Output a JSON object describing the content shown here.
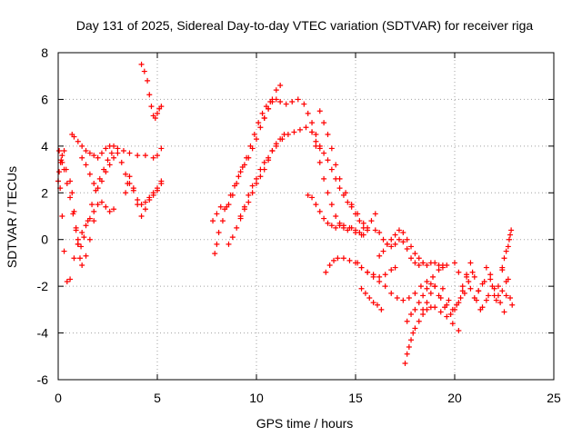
{
  "chart_data": {
    "type": "scatter",
    "title": "Day 131 of 2025, Sidereal Day-to-day VTEC variation (SDTVAR) for receiver riga",
    "xlabel": "GPS time / hours",
    "ylabel": "SDTVAR / TECUs",
    "xlim": [
      0,
      25
    ],
    "ylim": [
      -6,
      8
    ],
    "x_ticks": [
      "0",
      "5",
      "10",
      "15",
      "20",
      "25"
    ],
    "y_ticks": [
      "-6",
      "-4",
      "-2",
      "0",
      "2",
      "4",
      "6",
      "8"
    ],
    "grid": true,
    "marker": "+",
    "color": "#ff0000",
    "series": [
      {
        "name": "s1",
        "x": [
          0.0,
          0.1,
          0.2,
          0.3,
          0.45,
          0.6,
          0.8,
          1.0,
          1.2,
          1.4,
          1.6,
          1.8,
          2.0,
          2.2,
          2.4,
          2.6,
          2.8
        ],
        "y": [
          2.5,
          2.2,
          1.0,
          -0.5,
          -1.8,
          -1.7,
          -0.8,
          -0.2,
          0.3,
          0.6,
          0.9,
          1.2,
          1.5,
          1.6,
          1.4,
          1.2,
          1.3
        ]
      },
      {
        "name": "s2",
        "x": [
          0.05,
          0.15,
          0.3,
          0.45,
          0.6,
          0.75,
          0.9,
          1.0,
          1.1,
          1.2,
          1.4,
          1.6,
          1.8
        ],
        "y": [
          3.8,
          3.4,
          3.0,
          2.4,
          1.8,
          1.1,
          0.4,
          -0.2,
          -0.8,
          -1.1,
          -0.7,
          0.0,
          0.8
        ]
      },
      {
        "name": "s3",
        "x": [
          0.2,
          0.4,
          0.6,
          0.7,
          0.8,
          0.9,
          1.0,
          1.15,
          1.3,
          1.5,
          1.7,
          1.9,
          2.1,
          2.3,
          2.5,
          2.7
        ],
        "y": [
          3.3,
          3.0,
          2.5,
          2.0,
          1.2,
          0.5,
          0.0,
          -0.3,
          0.1,
          0.8,
          1.5,
          2.1,
          2.6,
          3.0,
          3.4,
          3.7
        ]
      },
      {
        "name": "s4",
        "x": [
          0.0,
          0.05,
          0.12,
          0.2,
          0.3
        ],
        "y": [
          2.5,
          2.9,
          3.3,
          3.6,
          3.8
        ]
      },
      {
        "name": "s5",
        "x": [
          0.7,
          0.8,
          1.0,
          1.2,
          1.4,
          1.6,
          1.8,
          2.0,
          2.2,
          2.4,
          2.6,
          2.8,
          3.0,
          3.3,
          3.6,
          4.0,
          4.4,
          4.8,
          5.0,
          5.2
        ],
        "y": [
          4.5,
          4.4,
          4.2,
          4.0,
          3.8,
          3.7,
          3.6,
          3.5,
          3.7,
          3.9,
          4.0,
          4.0,
          3.9,
          3.8,
          3.7,
          3.6,
          3.6,
          3.5,
          3.6,
          3.9
        ]
      },
      {
        "name": "s6",
        "x": [
          1.2,
          1.4,
          1.6,
          1.8,
          2.0,
          2.2,
          2.4,
          2.6,
          2.8,
          3.0,
          3.2,
          3.4,
          3.6,
          3.8,
          4.0,
          4.2,
          4.4,
          4.6,
          4.8,
          5.0,
          5.2
        ],
        "y": [
          3.5,
          3.2,
          2.8,
          2.4,
          2.2,
          2.5,
          2.9,
          3.2,
          3.5,
          3.7,
          3.3,
          2.8,
          2.4,
          2.1,
          1.7,
          1.5,
          1.6,
          1.8,
          2.0,
          2.2,
          2.5
        ]
      },
      {
        "name": "s7",
        "x": [
          3.4,
          3.5,
          3.6,
          3.8,
          4.0,
          4.2,
          4.4,
          4.6,
          4.8,
          5.0,
          5.2
        ],
        "y": [
          2.0,
          2.4,
          2.7,
          2.2,
          1.5,
          1.0,
          1.3,
          1.7,
          1.9,
          2.1,
          2.4
        ]
      },
      {
        "name": "s8",
        "x": [
          4.2,
          4.35,
          4.5,
          4.6,
          4.7,
          4.8,
          4.9,
          5.0,
          5.1,
          5.2
        ],
        "y": [
          7.5,
          7.2,
          6.8,
          6.2,
          5.7,
          5.3,
          5.2,
          5.4,
          5.6,
          5.7
        ]
      },
      {
        "name": "s9",
        "x": [
          7.9,
          8.0,
          8.1,
          8.3,
          8.5,
          8.7,
          8.9,
          9.1,
          9.3,
          9.5,
          9.7,
          9.9,
          10.1,
          10.3,
          10.5,
          10.7
        ],
        "y": [
          -0.6,
          -0.2,
          0.3,
          0.8,
          1.4,
          1.9,
          2.3,
          2.7,
          3.1,
          3.5,
          4.0,
          4.5,
          5.0,
          5.4,
          5.7,
          5.9
        ]
      },
      {
        "name": "s10",
        "x": [
          7.8,
          8.0,
          8.2,
          8.4,
          8.6,
          8.8,
          9.0,
          9.2,
          9.4,
          9.6,
          9.8,
          10.0,
          10.2,
          10.4,
          10.6,
          10.8,
          11.0,
          11.2
        ],
        "y": [
          0.8,
          1.1,
          1.4,
          1.3,
          1.5,
          1.9,
          2.4,
          2.9,
          3.2,
          3.5,
          3.9,
          4.3,
          4.8,
          5.2,
          5.6,
          6.0,
          6.4,
          6.6
        ]
      },
      {
        "name": "s11",
        "x": [
          8.6,
          8.8,
          9.0,
          9.2,
          9.4,
          9.6,
          9.8,
          10.0,
          10.2,
          10.4,
          10.6,
          10.8,
          11.0,
          11.2,
          11.4
        ],
        "y": [
          -0.2,
          0.1,
          0.5,
          0.9,
          1.4,
          1.9,
          2.3,
          2.6,
          3.0,
          3.3,
          3.5,
          3.8,
          4.0,
          4.3,
          4.5
        ]
      },
      {
        "name": "s12",
        "x": [
          9.2,
          9.4,
          9.6,
          9.8,
          10.0,
          10.2,
          10.4,
          10.6,
          10.8,
          11.0,
          11.3,
          11.6,
          11.9,
          12.2,
          12.5,
          12.8,
          13.0,
          13.2
        ],
        "y": [
          1.0,
          1.3,
          1.6,
          2.0,
          2.4,
          2.7,
          3.0,
          3.4,
          3.8,
          4.1,
          4.3,
          4.5,
          4.6,
          4.7,
          4.8,
          4.6,
          4.2,
          3.9
        ]
      },
      {
        "name": "s13",
        "x": [
          10.4,
          10.6,
          10.8,
          11.0,
          11.2,
          11.5,
          11.8,
          12.1,
          12.4,
          12.6,
          12.8,
          13.0,
          13.2,
          13.4,
          13.6,
          13.8,
          14.0,
          14.2,
          14.4,
          14.6,
          14.8,
          15.0,
          15.2,
          15.4,
          15.6,
          15.8,
          16.0
        ],
        "y": [
          5.2,
          5.6,
          5.9,
          6.0,
          5.9,
          5.8,
          5.9,
          6.0,
          5.8,
          5.4,
          5.0,
          4.5,
          4.0,
          3.7,
          3.4,
          3.0,
          2.6,
          2.2,
          1.9,
          1.6,
          1.4,
          1.1,
          0.8,
          0.5,
          0.4,
          0.8,
          1.1
        ]
      },
      {
        "name": "s14",
        "x": [
          12.8,
          13.0,
          13.2,
          13.4,
          13.6,
          13.8,
          14.0,
          14.2,
          14.4,
          14.6,
          14.8,
          15.0,
          15.2,
          15.4
        ],
        "y": [
          4.6,
          4.0,
          3.3,
          2.6,
          2.0,
          1.5,
          1.0,
          0.7,
          0.5,
          0.4,
          0.5,
          0.4,
          0.3,
          0.2
        ]
      },
      {
        "name": "s15",
        "x": [
          13.2,
          13.4,
          13.6,
          13.8,
          14.0,
          14.2,
          14.5,
          14.8,
          15.1,
          15.4,
          15.6
        ],
        "y": [
          5.5,
          5.0,
          4.5,
          3.9,
          3.2,
          2.6,
          2.0,
          1.5,
          1.1,
          0.7,
          0.5
        ]
      },
      {
        "name": "s16",
        "x": [
          12.6,
          12.8,
          13.0,
          13.2,
          13.4,
          13.6,
          13.8,
          14.0,
          14.2,
          14.4,
          14.7,
          15.0,
          15.3
        ],
        "y": [
          1.9,
          1.8,
          1.5,
          1.2,
          0.9,
          0.7,
          0.6,
          0.5,
          0.6,
          0.6,
          0.5,
          0.3,
          0.2
        ]
      },
      {
        "name": "s17",
        "x": [
          13.5,
          13.7,
          13.9,
          14.1,
          14.4,
          14.7,
          15.0,
          15.3,
          15.6,
          15.9,
          16.2,
          16.5,
          16.8,
          17.0
        ],
        "y": [
          -1.4,
          -1.1,
          -0.9,
          -0.8,
          -0.8,
          -0.9,
          -1.0,
          -1.2,
          -1.4,
          -1.5,
          -1.6,
          -1.5,
          -1.3,
          -1.2
        ]
      },
      {
        "name": "s18",
        "x": [
          15.1,
          15.3,
          15.6,
          15.9,
          16.2,
          16.5,
          16.8,
          17.1,
          17.4,
          17.7,
          18.0,
          18.3,
          18.6,
          18.9,
          19.2,
          19.4
        ],
        "y": [
          -1.0,
          -1.2,
          -1.4,
          -1.6,
          -1.8,
          -2.0,
          -2.3,
          -2.5,
          -2.6,
          -2.5,
          -2.3,
          -2.0,
          -1.8,
          -1.6,
          -1.3,
          -1.1
        ]
      },
      {
        "name": "s19",
        "x": [
          15.3,
          15.5,
          15.7,
          15.9,
          16.1,
          16.3
        ],
        "y": [
          -2.1,
          -2.3,
          -2.5,
          -2.7,
          -2.8,
          -3.0
        ]
      },
      {
        "name": "s20",
        "x": [
          16.2,
          16.4,
          16.6,
          16.8,
          17.0,
          17.2,
          17.4,
          17.6,
          17.8,
          18.0,
          18.2,
          18.4,
          18.6,
          18.8,
          19.0,
          19.2,
          19.4,
          19.6
        ],
        "y": [
          -0.7,
          -0.5,
          -0.2,
          0.0,
          0.2,
          0.4,
          0.3,
          0.0,
          -0.3,
          -0.6,
          -0.8,
          -1.0,
          -1.1,
          -1.0,
          -1.0,
          -1.1,
          -1.2,
          -1.1
        ]
      },
      {
        "name": "s21",
        "x": [
          16.0,
          16.2,
          16.4,
          16.6,
          16.8,
          17.0,
          17.2,
          17.4,
          17.6,
          17.8,
          18.0,
          18.2,
          18.4
        ],
        "y": [
          0.4,
          0.3,
          0.0,
          -0.2,
          -0.3,
          -0.2,
          0.0,
          -0.1,
          -0.4,
          -0.8,
          -1.0,
          -1.1,
          -1.0
        ]
      },
      {
        "name": "s22",
        "x": [
          17.5,
          17.6,
          17.7,
          17.8,
          17.9,
          18.0,
          18.2,
          18.4,
          18.6,
          18.8,
          19.0,
          19.3,
          19.6,
          19.9,
          20.2
        ],
        "y": [
          -5.3,
          -4.9,
          -4.6,
          -4.3,
          -4.0,
          -3.8,
          -3.5,
          -3.2,
          -3.0,
          -2.9,
          -2.9,
          -3.1,
          -3.3,
          -3.6,
          -3.9
        ]
      },
      {
        "name": "s23",
        "x": [
          17.6,
          17.8,
          18.0,
          18.2,
          18.4,
          18.6,
          18.8,
          19.0,
          19.3,
          19.6,
          19.9,
          20.2,
          20.5,
          20.8,
          21.1,
          21.4,
          21.7,
          22.0,
          22.3,
          22.6,
          22.9
        ],
        "y": [
          -3.5,
          -3.2,
          -3.0,
          -2.7,
          -2.4,
          -2.1,
          -1.9,
          -2.0,
          -2.5,
          -2.8,
          -3.0,
          -2.7,
          -2.3,
          -2.1,
          -2.6,
          -2.9,
          -2.4,
          -2.1,
          -2.7,
          -2.4,
          -2.8
        ]
      },
      {
        "name": "s24",
        "x": [
          18.4,
          18.6,
          18.8,
          19.0,
          19.2,
          19.5,
          19.8,
          20.1,
          20.4,
          20.7,
          21.0,
          21.3,
          21.6,
          21.9,
          22.2,
          22.5,
          22.8
        ],
        "y": [
          -3.0,
          -2.7,
          -2.3,
          -2.0,
          -2.4,
          -2.9,
          -3.2,
          -2.8,
          -2.2,
          -1.8,
          -2.5,
          -3.0,
          -2.6,
          -2.0,
          -2.4,
          -3.1,
          -2.5
        ]
      },
      {
        "name": "s25",
        "x": [
          19.4,
          19.7,
          20.0,
          20.3,
          20.6,
          20.9,
          21.2,
          21.5,
          21.8,
          22.1,
          22.4,
          22.7
        ],
        "y": [
          -2.1,
          -2.6,
          -3.0,
          -2.5,
          -1.6,
          -1.4,
          -2.2,
          -1.8,
          -1.5,
          -2.6,
          -2.2,
          -1.7
        ]
      },
      {
        "name": "s26",
        "x": [
          20.0,
          20.2,
          20.4,
          20.6,
          20.8,
          21.0,
          21.2,
          21.4,
          21.6,
          21.8,
          22.0,
          22.2,
          22.4,
          22.6
        ],
        "y": [
          -1.0,
          -1.4,
          -2.0,
          -1.5,
          -1.0,
          -1.6,
          -2.2,
          -1.9,
          -1.2,
          -1.7,
          -2.4,
          -2.0,
          -1.3,
          -1.8
        ]
      },
      {
        "name": "s27",
        "x": [
          22.4,
          22.5,
          22.6,
          22.7,
          22.75,
          22.8,
          22.85
        ],
        "y": [
          -1.2,
          -0.8,
          -0.5,
          -0.3,
          0.0,
          0.2,
          0.4
        ]
      }
    ]
  }
}
